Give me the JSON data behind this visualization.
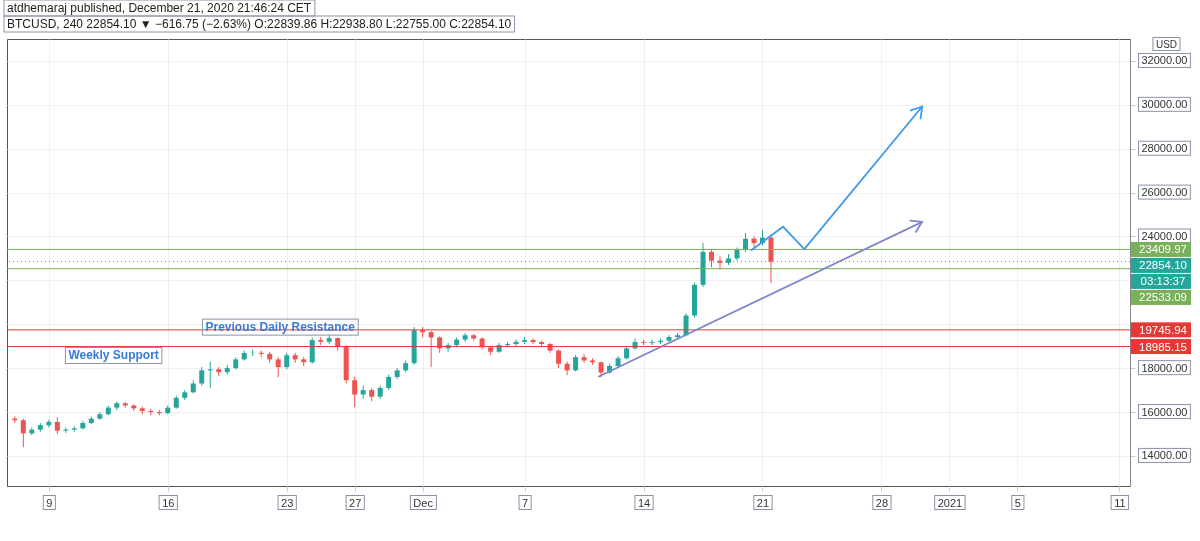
{
  "chart_data": {
    "type": "candlestick",
    "title": "atdhemaraj published, December 21, 2020 21:46:24 CET",
    "subtitle": "BTCUSD, 240  22854.10 ▼ −616.75 (−2.63%) O:22839.86 H:22938.80 L:22755.00 C:22854.10",
    "ylabel": "USD",
    "x": [
      "2020-11-07T00:00",
      "2020-11-07T12:00",
      "2020-11-08T00:00",
      "2020-11-08T12:00",
      "2020-11-09T00:00",
      "2020-11-09T12:00",
      "2020-11-10T00:00",
      "2020-11-10T12:00",
      "2020-11-11T00:00",
      "2020-11-11T12:00",
      "2020-11-12T00:00",
      "2020-11-12T12:00",
      "2020-11-13T00:00",
      "2020-11-13T12:00",
      "2020-11-14T00:00",
      "2020-11-14T12:00",
      "2020-11-15T00:00",
      "2020-11-15T12:00",
      "2020-11-16T00:00",
      "2020-11-16T12:00",
      "2020-11-17T00:00",
      "2020-11-17T12:00",
      "2020-11-18T00:00",
      "2020-11-18T12:00",
      "2020-11-19T00:00",
      "2020-11-19T12:00",
      "2020-11-20T00:00",
      "2020-11-20T12:00",
      "2020-11-21T00:00",
      "2020-11-21T12:00",
      "2020-11-22T00:00",
      "2020-11-22T12:00",
      "2020-11-23T00:00",
      "2020-11-23T12:00",
      "2020-11-24T00:00",
      "2020-11-24T12:00",
      "2020-11-25T00:00",
      "2020-11-25T12:00",
      "2020-11-26T00:00",
      "2020-11-26T12:00",
      "2020-11-27T00:00",
      "2020-11-27T12:00",
      "2020-11-28T00:00",
      "2020-11-28T12:00",
      "2020-11-29T00:00",
      "2020-11-29T12:00",
      "2020-11-30T00:00",
      "2020-11-30T12:00",
      "2020-12-01T00:00",
      "2020-12-01T12:00",
      "2020-12-02T00:00",
      "2020-12-02T12:00",
      "2020-12-03T00:00",
      "2020-12-03T12:00",
      "2020-12-04T00:00",
      "2020-12-04T12:00",
      "2020-12-05T00:00",
      "2020-12-05T12:00",
      "2020-12-06T00:00",
      "2020-12-06T12:00",
      "2020-12-07T00:00",
      "2020-12-07T12:00",
      "2020-12-08T00:00",
      "2020-12-08T12:00",
      "2020-12-09T00:00",
      "2020-12-09T12:00",
      "2020-12-10T00:00",
      "2020-12-10T12:00",
      "2020-12-11T00:00",
      "2020-12-11T12:00",
      "2020-12-12T00:00",
      "2020-12-12T12:00",
      "2020-12-13T00:00",
      "2020-12-13T12:00",
      "2020-12-14T00:00",
      "2020-12-14T12:00",
      "2020-12-15T00:00",
      "2020-12-15T12:00",
      "2020-12-16T00:00",
      "2020-12-16T12:00",
      "2020-12-17T00:00",
      "2020-12-17T12:00",
      "2020-12-18T00:00",
      "2020-12-18T12:00",
      "2020-12-19T00:00",
      "2020-12-19T12:00",
      "2020-12-20T00:00",
      "2020-12-20T12:00",
      "2020-12-21T00:00",
      "2020-12-21T12:00"
    ],
    "ohlc": [
      [
        15700,
        15800,
        15500,
        15626
      ],
      [
        15626,
        15700,
        14400,
        15030
      ],
      [
        15030,
        15300,
        14950,
        15200
      ],
      [
        15200,
        15500,
        15100,
        15400
      ],
      [
        15400,
        15650,
        15300,
        15550
      ],
      [
        15550,
        15760,
        15000,
        15150
      ],
      [
        15150,
        15300,
        15050,
        15200
      ],
      [
        15200,
        15350,
        15100,
        15260
      ],
      [
        15260,
        15600,
        15200,
        15500
      ],
      [
        15500,
        15800,
        15450,
        15700
      ],
      [
        15700,
        16000,
        15650,
        15900
      ],
      [
        15900,
        16300,
        15850,
        16200
      ],
      [
        16200,
        16480,
        16100,
        16400
      ],
      [
        16400,
        16450,
        16200,
        16300
      ],
      [
        16300,
        16350,
        16050,
        16170
      ],
      [
        16170,
        16250,
        15900,
        16050
      ],
      [
        16050,
        16150,
        15850,
        16000
      ],
      [
        16000,
        16100,
        15850,
        15950
      ],
      [
        15950,
        16300,
        15900,
        16200
      ],
      [
        16200,
        16750,
        16150,
        16650
      ],
      [
        16650,
        17000,
        16550,
        16900
      ],
      [
        16900,
        17450,
        16850,
        17300
      ],
      [
        17300,
        18050,
        17200,
        17900
      ],
      [
        17900,
        18300,
        17090,
        17950
      ],
      [
        17950,
        18050,
        17650,
        17820
      ],
      [
        17820,
        18150,
        17700,
        18000
      ],
      [
        18000,
        18500,
        17950,
        18400
      ],
      [
        18400,
        18800,
        18350,
        18690
      ],
      [
        18690,
        18850,
        18550,
        18700
      ],
      [
        18700,
        18800,
        18500,
        18650
      ],
      [
        18650,
        18750,
        18250,
        18400
      ],
      [
        18400,
        18500,
        17590,
        18050
      ],
      [
        18050,
        18700,
        17950,
        18590
      ],
      [
        18590,
        18700,
        18250,
        18400
      ],
      [
        18400,
        18500,
        18100,
        18270
      ],
      [
        18270,
        19400,
        18200,
        19280
      ],
      [
        19280,
        19420,
        19050,
        19200
      ],
      [
        19200,
        19500,
        19100,
        19370
      ],
      [
        19370,
        19400,
        18800,
        18960
      ],
      [
        18960,
        19050,
        17300,
        17450
      ],
      [
        17450,
        17600,
        16220,
        16800
      ],
      [
        16800,
        17200,
        16600,
        17000
      ],
      [
        17000,
        17100,
        16500,
        16700
      ],
      [
        16700,
        17200,
        16600,
        17100
      ],
      [
        17100,
        17700,
        17000,
        17600
      ],
      [
        17600,
        18000,
        17500,
        17900
      ],
      [
        17900,
        18350,
        17800,
        18230
      ],
      [
        18230,
        19870,
        18150,
        19730
      ],
      [
        19730,
        19870,
        19400,
        19640
      ],
      [
        19640,
        19700,
        18050,
        19400
      ],
      [
        19400,
        19450,
        18700,
        18900
      ],
      [
        18900,
        19150,
        18750,
        19050
      ],
      [
        19050,
        19400,
        18950,
        19300
      ],
      [
        19300,
        19600,
        19200,
        19500
      ],
      [
        19500,
        19550,
        19250,
        19350
      ],
      [
        19350,
        19400,
        18850,
        18950
      ],
      [
        18950,
        19000,
        18600,
        18750
      ],
      [
        18750,
        19150,
        18700,
        19050
      ],
      [
        19050,
        19200,
        18950,
        19100
      ],
      [
        19100,
        19300,
        19000,
        19200
      ],
      [
        19200,
        19420,
        19100,
        19280
      ],
      [
        19280,
        19350,
        19100,
        19190
      ],
      [
        19190,
        19250,
        19000,
        19100
      ],
      [
        19100,
        19150,
        18700,
        18800
      ],
      [
        18800,
        18850,
        18000,
        18200
      ],
      [
        18200,
        18300,
        17680,
        17900
      ],
      [
        17900,
        18600,
        17850,
        18500
      ],
      [
        18500,
        18650,
        18250,
        18350
      ],
      [
        18350,
        18450,
        18150,
        18270
      ],
      [
        18270,
        18300,
        17590,
        17800
      ],
      [
        17800,
        18200,
        17750,
        18100
      ],
      [
        18100,
        18550,
        18050,
        18450
      ],
      [
        18450,
        19000,
        18400,
        18900
      ],
      [
        18900,
        19350,
        18850,
        19190
      ],
      [
        19190,
        19300,
        19050,
        19150
      ],
      [
        19150,
        19300,
        19050,
        19190
      ],
      [
        19190,
        19350,
        19100,
        19250
      ],
      [
        19250,
        19500,
        19150,
        19420
      ],
      [
        19420,
        19600,
        19350,
        19500
      ],
      [
        19500,
        20500,
        19450,
        20400
      ],
      [
        20400,
        21900,
        20300,
        21800
      ],
      [
        21800,
        23710,
        21700,
        23300
      ],
      [
        23300,
        23400,
        22600,
        22900
      ],
      [
        22900,
        23100,
        22500,
        22800
      ],
      [
        22800,
        23200,
        22700,
        23000
      ],
      [
        23000,
        23500,
        22900,
        23400
      ],
      [
        23400,
        24160,
        23300,
        23900
      ],
      [
        23900,
        24000,
        23500,
        23700
      ],
      [
        23700,
        24300,
        23600,
        23950
      ],
      [
        23950,
        24100,
        21880,
        22854.1
      ]
    ],
    "ref_lines": [
      {
        "axis": "y",
        "value": 23409.97,
        "label": "23409.97",
        "color": "#79b05a"
      },
      {
        "axis": "y",
        "value": 22854.1,
        "label": "22854.10",
        "color": "#26a69a",
        "line_style": "dotted"
      },
      {
        "axis": "y",
        "value": 22533.09,
        "label": "22533.09",
        "color": "#79b05a"
      },
      {
        "axis": "y",
        "value": 19745.94,
        "label": "19745.94",
        "color": "#e53935"
      },
      {
        "axis": "y",
        "value": 18985.15,
        "label": "18985.15",
        "color": "#e53935"
      }
    ],
    "annotations": [
      {
        "text": "Previous Daily Resistance",
        "x": "2020-11-18T01:00",
        "y": 19870
      },
      "Weekly Support",
      "03:13:37"
    ],
    "xlim": [
      "2020-11-06T20:00",
      "2021-01-11T08:00"
    ],
    "xticks": [
      {
        "value": "2020-11-09",
        "label": "9"
      },
      {
        "value": "2020-11-16",
        "label": "16"
      },
      {
        "value": "2020-11-23",
        "label": "23"
      },
      {
        "value": "2020-11-27",
        "label": "27"
      },
      {
        "value": "2020-12-01",
        "label": "Dec"
      },
      {
        "value": "2020-12-07",
        "label": "7"
      },
      {
        "value": "2020-12-14",
        "label": "14"
      },
      {
        "value": "2020-12-21",
        "label": "21"
      },
      {
        "value": "2020-12-28",
        "label": "28"
      },
      {
        "value": "2021-01-01",
        "label": "2021"
      },
      {
        "value": "2021-01-05",
        "label": "5"
      },
      {
        "value": "2021-01-11",
        "label": "11"
      }
    ],
    "ylim": [
      12630,
      33000
    ],
    "yticks": [
      {
        "value": 14000,
        "label": "14000.00"
      },
      {
        "value": 16000,
        "label": "16000.00"
      },
      {
        "value": 18000,
        "label": "18000.00"
      },
      {
        "value": 20000,
        "label": null
      },
      {
        "value": 22000,
        "label": null
      },
      {
        "value": 24000,
        "label": "24000.00"
      },
      {
        "value": 26000,
        "label": "26000.00"
      },
      {
        "value": 28000,
        "label": "28000.00"
      },
      {
        "value": 30000,
        "label": "30000.00"
      },
      {
        "value": 32000,
        "label": "32000.00"
      }
    ],
    "grid": true
  }
}
